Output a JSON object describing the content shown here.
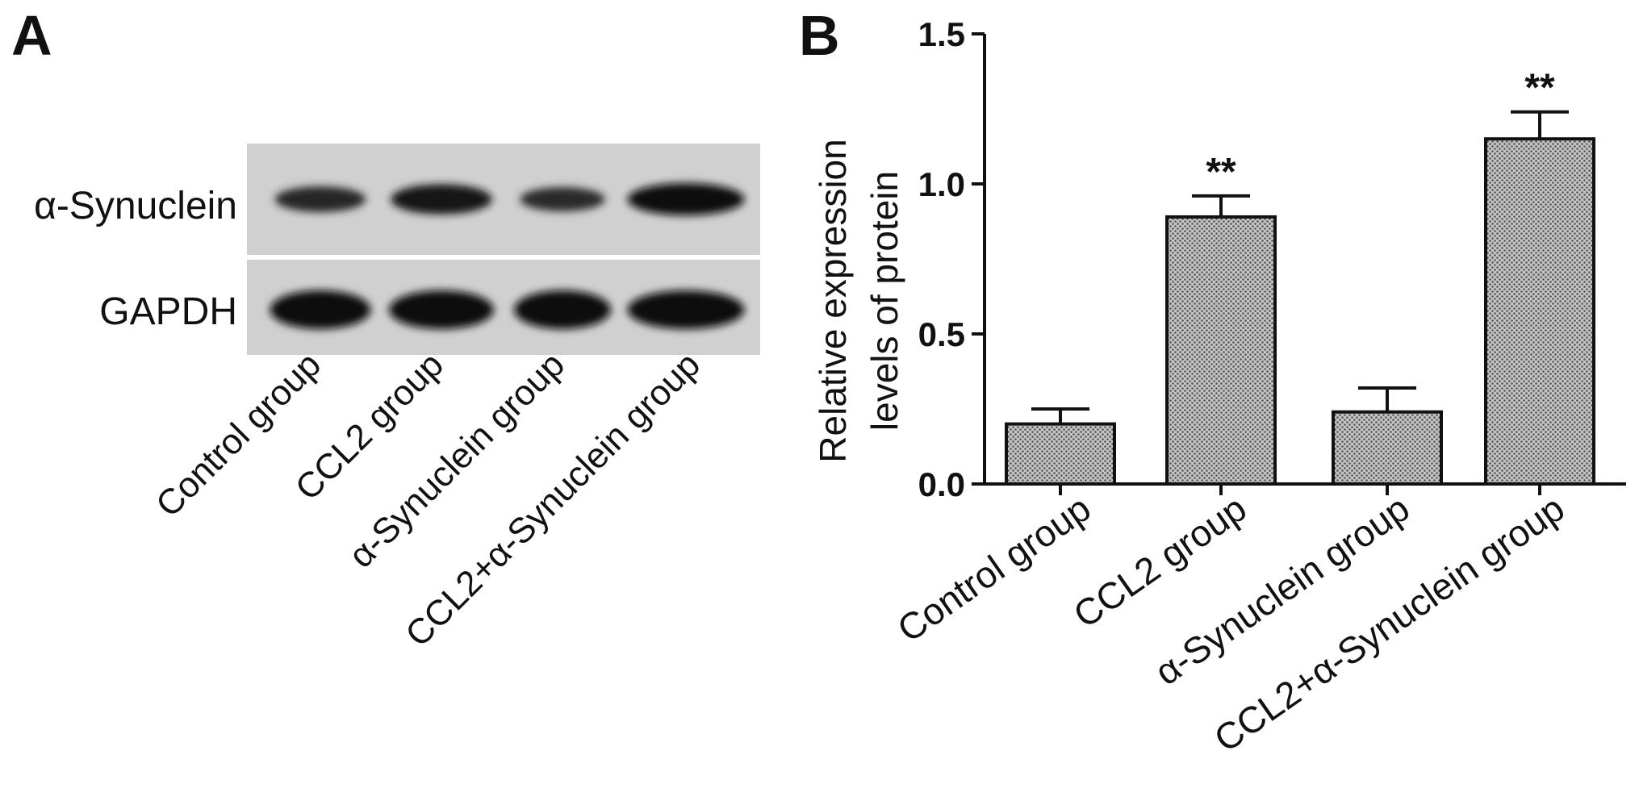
{
  "panel_a": {
    "label": "A",
    "rows": [
      {
        "name": "α-Synuclein",
        "intensity": [
          0.55,
          0.85,
          0.45,
          1.0
        ]
      },
      {
        "name": "GAPDH",
        "intensity": [
          1.0,
          1.0,
          1.0,
          1.0
        ]
      }
    ],
    "lanes": [
      "Control group",
      "CCL2 group",
      "α-Synuclein group",
      "CCL2+α-Synuclein group"
    ]
  },
  "panel_b": {
    "label": "B"
  },
  "chart_data": {
    "type": "bar",
    "categories": [
      "Control group",
      "CCL2 group",
      "α-Synuclein group",
      "CCL2+α-Synuclein group"
    ],
    "values": [
      0.2,
      0.89,
      0.24,
      1.15
    ],
    "errors": [
      0.05,
      0.07,
      0.08,
      0.09
    ],
    "significance": [
      "",
      "**",
      "",
      "**"
    ],
    "ylabel": [
      "Relative expression",
      "levels of protein"
    ],
    "xlabel": "",
    "ylim": [
      0,
      1.5
    ],
    "yticks": [
      "0.0",
      "0.5",
      "1.0",
      "1.5"
    ],
    "bar_fill": "#b5b5b5",
    "bar_pattern": "dotted-halftone",
    "legend": "none",
    "grid": false
  }
}
